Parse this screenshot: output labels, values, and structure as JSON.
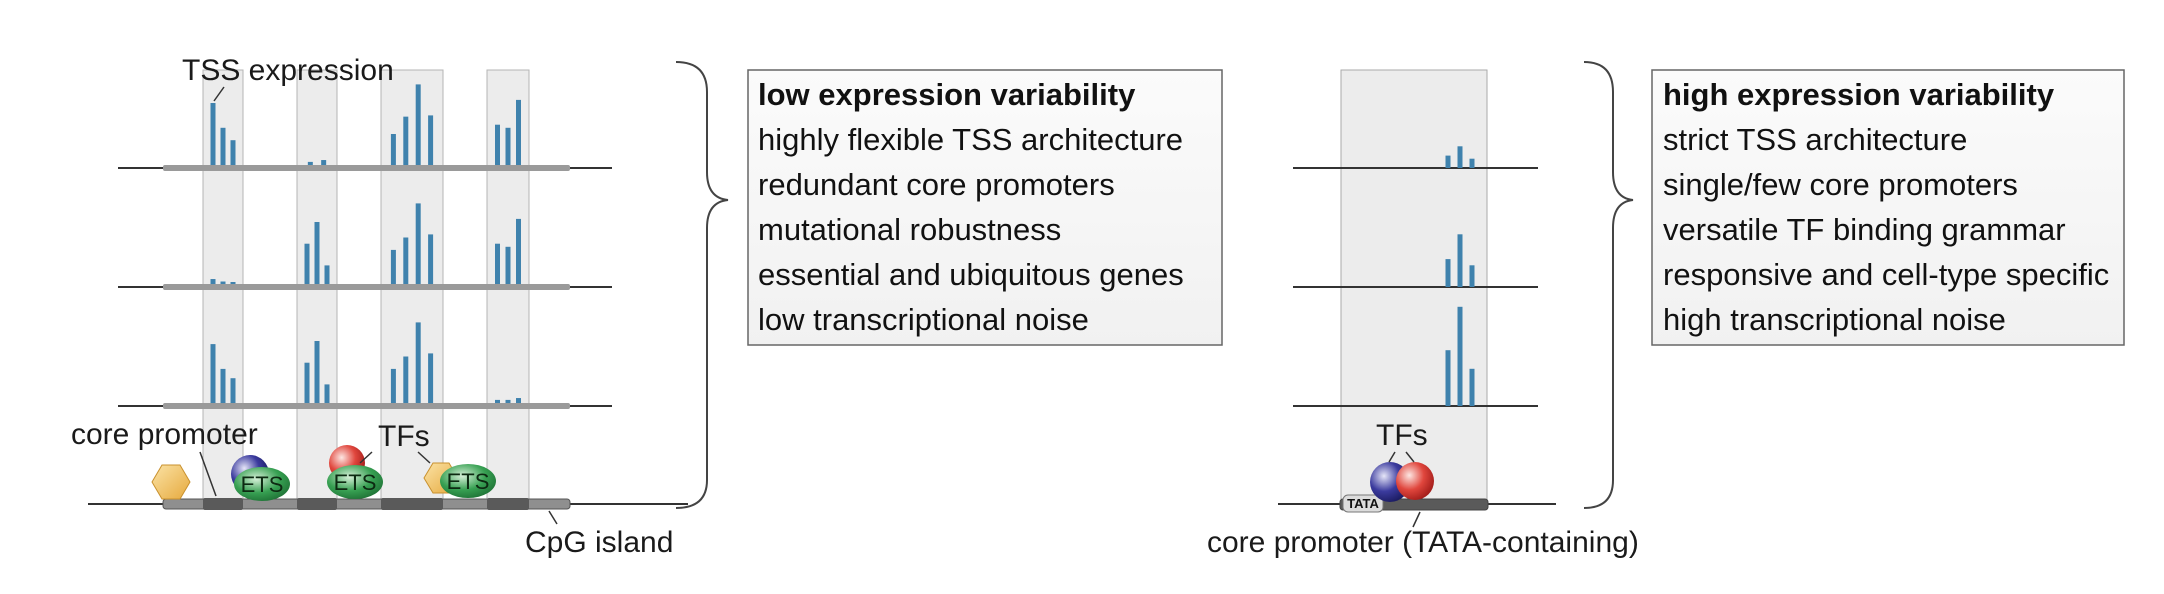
{
  "left_panel": {
    "tss_label": "TSS expression",
    "core_promoter_label": "core promoter",
    "tfs_label": "TFs",
    "cpg_label": "CpG island",
    "ets_label": "ETS",
    "tracks": [
      [
        [
          1.0,
          0.6,
          0.4
        ],
        [
          0.05,
          0.08
        ],
        [
          0.5,
          0.78,
          1.3,
          0.8
        ],
        [
          0.65,
          0.6,
          1.05
        ]
      ],
      [
        [
          0.08,
          0.04,
          0.03
        ],
        [
          0.65,
          1.0,
          0.3
        ],
        [
          0.55,
          0.75,
          1.3,
          0.8
        ],
        [
          0.65,
          0.6,
          1.05
        ]
      ],
      [
        [
          0.95,
          0.55,
          0.4
        ],
        [
          0.65,
          1.0,
          0.3
        ],
        [
          0.55,
          0.75,
          1.3,
          0.8
        ],
        [
          0.05,
          0.05,
          0.08
        ]
      ]
    ]
  },
  "left_box": {
    "title": "low expression variability",
    "lines": [
      "highly flexible TSS architecture",
      "redundant core promoters",
      "mutational robustness",
      "essential and ubiquitous genes",
      "low transcriptional noise"
    ]
  },
  "right_panel": {
    "tfs_label": "TFs",
    "tata_label": "TATA",
    "core_promoter_label": "core promoter (TATA-containing)",
    "tracks": [
      [
        0.2,
        0.35,
        0.15
      ],
      [
        0.45,
        0.85,
        0.35
      ],
      [
        0.9,
        1.6,
        0.6
      ]
    ]
  },
  "right_box": {
    "title": "high expression variability",
    "lines": [
      "strict TSS architecture",
      "single/few core promoters",
      "versatile TF binding grammar",
      "responsive and cell-type specific",
      "high transcriptional noise"
    ]
  },
  "colors": {
    "bar": "#3f82ad",
    "shade": "#ececec",
    "ets_green": "#2e8b47",
    "tf_red": "#d8332e",
    "tf_blue": "#2f2f8f",
    "hexagon": "#f2c15a"
  }
}
